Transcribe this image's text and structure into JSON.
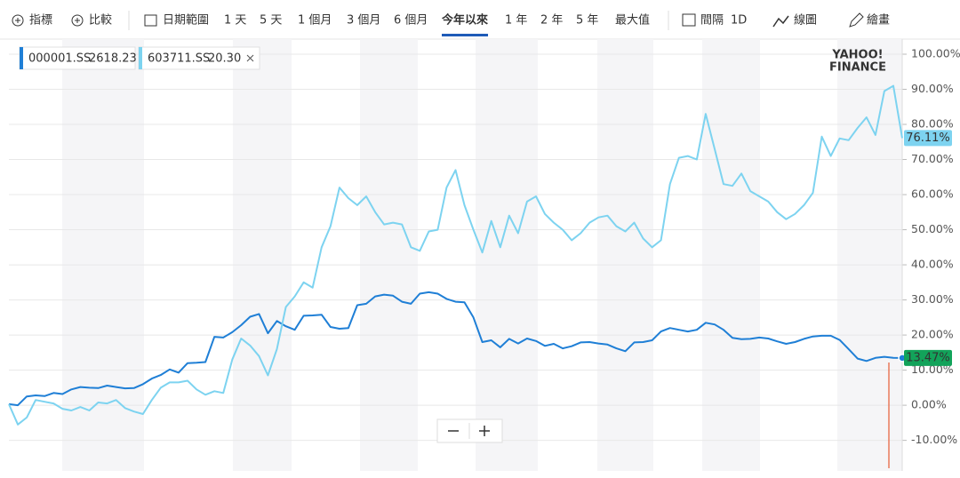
{
  "toolbar": {
    "items": [
      "指標",
      "比較",
      "日期範圍",
      "1 天",
      "5 天",
      "1 個月",
      "3 個月",
      "6 個月",
      "今年以來",
      "1 年",
      "2 年",
      "5 年",
      "最大值",
      "間隔",
      "1D",
      "線圖",
      "繪畫"
    ],
    "active": 8
  },
  "chart_data": {
    "type": "line",
    "watermark": [
      "YAHOO!",
      "FINANCE"
    ],
    "ylim": [
      -18.7,
      104.3
    ],
    "yticks": [
      {
        "value": -10,
        "label": "-10.00%"
      },
      {
        "value": 0,
        "label": "0.00%"
      },
      {
        "value": 10,
        "label": "10.00%"
      },
      {
        "value": 20,
        "label": "20.00%"
      },
      {
        "value": 30,
        "label": "30.00%"
      },
      {
        "value": 40,
        "label": "40.00%"
      },
      {
        "value": 50,
        "label": "50.00%"
      },
      {
        "value": 60,
        "label": "60.00%"
      },
      {
        "value": 70,
        "label": "70.00%"
      },
      {
        "value": 80,
        "label": "80.00%"
      },
      {
        "value": 90,
        "label": "90.00%"
      },
      {
        "value": 100,
        "label": "100.00%"
      }
    ],
    "grid": true,
    "series": [
      {
        "name": "000001.SS",
        "price": 2618.23,
        "color": "#1f7fd6",
        "flag_color": "#12a35a",
        "end_dot": true,
        "last_label": "13.47%",
        "values": [
          0.3,
          0.0,
          2.5,
          2.8,
          2.6,
          3.5,
          3.2,
          4.5,
          5.2,
          5.0,
          4.9,
          5.6,
          5.2,
          4.8,
          4.9,
          6.0,
          7.6,
          8.6,
          10.2,
          9.3,
          12.0,
          12.1,
          12.3,
          19.5,
          19.3,
          20.8,
          22.8,
          25.2,
          26.0,
          20.5,
          24.0,
          22.5,
          21.5,
          25.5,
          25.6,
          25.8,
          22.3,
          21.8,
          22.0,
          28.5,
          28.9,
          31.0,
          31.5,
          31.2,
          29.5,
          28.9,
          31.8,
          32.2,
          31.8,
          30.3,
          29.5,
          29.3,
          25.0,
          18.0,
          18.5,
          16.5,
          18.9,
          17.6,
          19.0,
          18.3,
          16.9,
          17.5,
          16.2,
          16.8,
          17.9,
          18.0,
          17.6,
          17.3,
          16.2,
          15.4,
          17.9,
          18.0,
          18.5,
          21.0,
          22.0,
          21.5,
          21.0,
          21.5,
          23.5,
          23.0,
          21.5,
          19.2,
          18.8,
          18.9,
          19.3,
          19.0,
          18.2,
          17.5,
          18.0,
          18.9,
          19.6,
          19.8,
          19.8,
          18.6,
          16.0,
          13.3,
          12.6,
          13.5,
          13.8,
          13.5,
          13.47
        ]
      },
      {
        "name": "603711.SS",
        "price": {
          "value": 20.3,
          "label": "20.30"
        },
        "color": "#7dd3f0",
        "flag_color": "#7dd3f0",
        "end_dot": false,
        "last_label": "76.11%",
        "values": [
          0.3,
          -5.5,
          -3.5,
          1.5,
          1.0,
          0.5,
          -1.0,
          -1.5,
          -0.5,
          -1.5,
          0.8,
          0.5,
          1.5,
          -0.8,
          -1.8,
          -2.5,
          1.5,
          5.0,
          6.5,
          6.5,
          7.0,
          4.5,
          3.0,
          4.0,
          3.5,
          13.0,
          19.0,
          17.0,
          14.0,
          8.5,
          16.0,
          28.0,
          31.0,
          35.0,
          33.5,
          45.0,
          51.0,
          62.0,
          59.0,
          57.0,
          59.5,
          55.0,
          51.5,
          52.0,
          51.5,
          45.0,
          44.0,
          49.5,
          50.0,
          62.0,
          67.0,
          57.0,
          50.0,
          43.5,
          52.5,
          45.0,
          54.0,
          49.0,
          58.0,
          59.5,
          54.5,
          52.0,
          50.0,
          47.0,
          49.0,
          52.0,
          53.5,
          54.0,
          51.0,
          49.5,
          52.0,
          47.5,
          45.0,
          47.0,
          63.0,
          70.5,
          71.0,
          70.0,
          83.0,
          73.0,
          63.0,
          62.5,
          66.0,
          61.0,
          59.5,
          58.0,
          55.0,
          53.0,
          54.5,
          57.0,
          60.5,
          76.5,
          71.0,
          76.0,
          75.5,
          79.0,
          82.0,
          77.0,
          89.5,
          91.0,
          76.11
        ]
      }
    ]
  }
}
